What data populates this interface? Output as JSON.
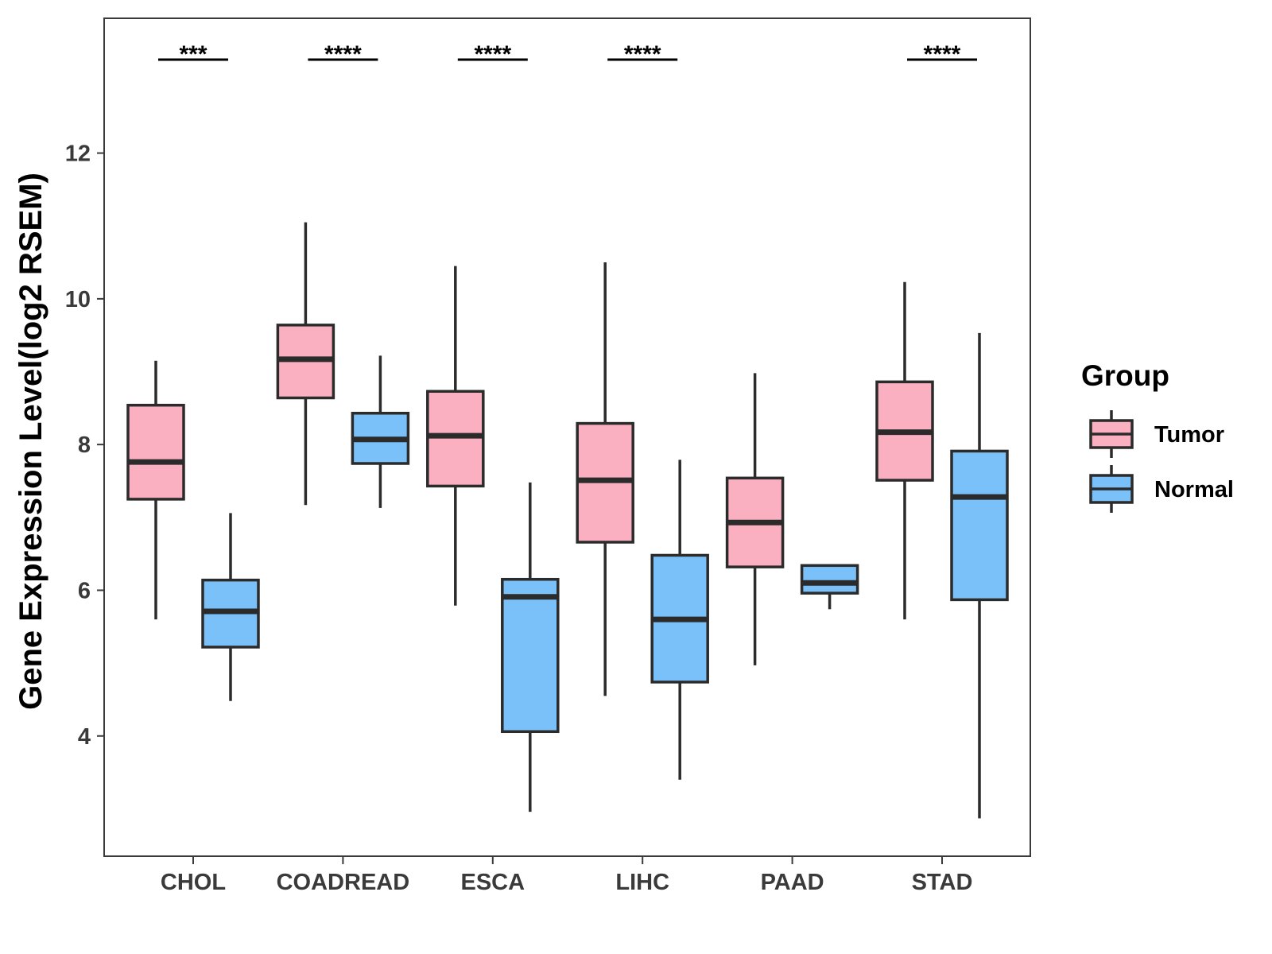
{
  "chart_data": {
    "type": "boxplot",
    "title": "",
    "xlabel": "",
    "ylabel": "Gene Expression Level(log2 RSEM)",
    "ylim": [
      2.35,
      13.85
    ],
    "yticks": [
      4,
      6,
      8,
      10,
      12
    ],
    "grid": false,
    "legend": {
      "title": "Group",
      "position": "right",
      "entries": [
        "Tumor",
        "Normal"
      ]
    },
    "colors": {
      "Tumor": "#fbb0c1",
      "Normal": "#79c1f8",
      "outline": "#2b2b2b",
      "axis": "#3a3a3a"
    },
    "categories": [
      "CHOL",
      "COADREAD",
      "ESCA",
      "LIHC",
      "PAAD",
      "STAD"
    ],
    "series": [
      {
        "name": "Tumor",
        "boxes": [
          {
            "min": 5.6,
            "q1": 7.25,
            "median": 7.76,
            "q3": 8.54,
            "max": 9.15
          },
          {
            "min": 7.17,
            "q1": 8.64,
            "median": 9.17,
            "q3": 9.64,
            "max": 11.05
          },
          {
            "min": 5.79,
            "q1": 7.43,
            "median": 8.12,
            "q3": 8.73,
            "max": 10.45
          },
          {
            "min": 4.55,
            "q1": 6.66,
            "median": 7.51,
            "q3": 8.29,
            "max": 10.5
          },
          {
            "min": 4.97,
            "q1": 6.32,
            "median": 6.93,
            "q3": 7.54,
            "max": 8.98
          },
          {
            "min": 5.6,
            "q1": 7.51,
            "median": 8.17,
            "q3": 8.86,
            "max": 10.23
          }
        ]
      },
      {
        "name": "Normal",
        "boxes": [
          {
            "min": 4.48,
            "q1": 5.22,
            "median": 5.71,
            "q3": 6.14,
            "max": 7.06
          },
          {
            "min": 7.13,
            "q1": 7.74,
            "median": 8.07,
            "q3": 8.43,
            "max": 9.22
          },
          {
            "min": 2.96,
            "q1": 4.06,
            "median": 5.91,
            "q3": 6.15,
            "max": 7.48
          },
          {
            "min": 3.4,
            "q1": 4.74,
            "median": 5.6,
            "q3": 6.48,
            "max": 7.79
          },
          {
            "min": 5.74,
            "q1": 5.96,
            "median": 6.1,
            "q3": 6.34,
            "max": 6.34
          },
          {
            "min": 2.87,
            "q1": 5.87,
            "median": 7.28,
            "q3": 7.91,
            "max": 9.53
          }
        ]
      }
    ],
    "annotations": [
      {
        "category": "CHOL",
        "label": "***"
      },
      {
        "category": "COADREAD",
        "label": "****"
      },
      {
        "category": "ESCA",
        "label": "****"
      },
      {
        "category": "LIHC",
        "label": "****"
      },
      {
        "category": "PAAD",
        "label": ""
      },
      {
        "category": "STAD",
        "label": "****"
      }
    ]
  }
}
